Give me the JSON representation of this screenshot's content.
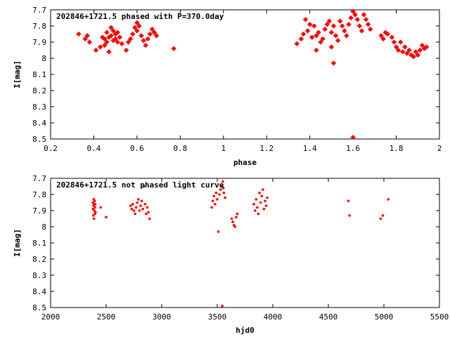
{
  "chart_data": [
    {
      "type": "scatter",
      "title": "202846+1721.5 phased with P=370.0day",
      "xlabel": "phase",
      "ylabel": "I[mag]",
      "xlim": [
        0.2,
        2.0
      ],
      "ylim": [
        7.7,
        8.5
      ],
      "y_inverted": true,
      "xticks": [
        "0.2",
        "0.4",
        "0.6",
        "0.8",
        "1",
        "1.2",
        "1.4",
        "1.6",
        "1.8",
        "2"
      ],
      "yticks": [
        "7.7",
        "7.8",
        "7.9",
        "8",
        "8.1",
        "8.2",
        "8.3",
        "8.4",
        "8.5"
      ],
      "point_color": "#ff0000",
      "points": [
        [
          0.33,
          7.85
        ],
        [
          0.36,
          7.88
        ],
        [
          0.37,
          7.86
        ],
        [
          0.38,
          7.9
        ],
        [
          0.41,
          7.95
        ],
        [
          0.43,
          7.93
        ],
        [
          0.44,
          7.87
        ],
        [
          0.45,
          7.88
        ],
        [
          0.45,
          7.92
        ],
        [
          0.46,
          7.84
        ],
        [
          0.46,
          7.9
        ],
        [
          0.47,
          7.87
        ],
        [
          0.47,
          7.96
        ],
        [
          0.48,
          7.81
        ],
        [
          0.48,
          7.86
        ],
        [
          0.49,
          7.89
        ],
        [
          0.49,
          7.83
        ],
        [
          0.5,
          7.85
        ],
        [
          0.5,
          7.88
        ],
        [
          0.51,
          7.84
        ],
        [
          0.51,
          7.9
        ],
        [
          0.52,
          7.87
        ],
        [
          0.53,
          7.91
        ],
        [
          0.55,
          7.95
        ],
        [
          0.56,
          7.9
        ],
        [
          0.57,
          7.88
        ],
        [
          0.58,
          7.85
        ],
        [
          0.59,
          7.81
        ],
        [
          0.6,
          7.78
        ],
        [
          0.6,
          7.83
        ],
        [
          0.61,
          7.8
        ],
        [
          0.62,
          7.86
        ],
        [
          0.63,
          7.89
        ],
        [
          0.64,
          7.92
        ],
        [
          0.65,
          7.88
        ],
        [
          0.66,
          7.85
        ],
        [
          0.67,
          7.82
        ],
        [
          0.68,
          7.84
        ],
        [
          0.69,
          7.86
        ],
        [
          0.77,
          7.94
        ],
        [
          1.34,
          7.91
        ],
        [
          1.36,
          7.88
        ],
        [
          1.37,
          7.85
        ],
        [
          1.38,
          7.76
        ],
        [
          1.39,
          7.83
        ],
        [
          1.4,
          7.79
        ],
        [
          1.41,
          7.87
        ],
        [
          1.42,
          7.8
        ],
        [
          1.43,
          7.86
        ],
        [
          1.43,
          7.95
        ],
        [
          1.44,
          7.84
        ],
        [
          1.45,
          7.9
        ],
        [
          1.46,
          7.88
        ],
        [
          1.47,
          7.82
        ],
        [
          1.48,
          7.79
        ],
        [
          1.49,
          7.77
        ],
        [
          1.5,
          7.84
        ],
        [
          1.5,
          7.93
        ],
        [
          1.51,
          7.8
        ],
        [
          1.51,
          8.03
        ],
        [
          1.52,
          7.86
        ],
        [
          1.53,
          7.89
        ],
        [
          1.54,
          7.77
        ],
        [
          1.55,
          7.8
        ],
        [
          1.56,
          7.83
        ],
        [
          1.57,
          7.86
        ],
        [
          1.58,
          7.79
        ],
        [
          1.59,
          7.75
        ],
        [
          1.6,
          7.71
        ],
        [
          1.6,
          8.49
        ],
        [
          1.61,
          7.73
        ],
        [
          1.62,
          7.76
        ],
        [
          1.63,
          7.8
        ],
        [
          1.64,
          7.83
        ],
        [
          1.65,
          7.73
        ],
        [
          1.66,
          7.76
        ],
        [
          1.67,
          7.79
        ],
        [
          1.68,
          7.82
        ],
        [
          1.73,
          7.86
        ],
        [
          1.74,
          7.88
        ],
        [
          1.75,
          7.84
        ],
        [
          1.76,
          7.85
        ],
        [
          1.78,
          7.87
        ],
        [
          1.79,
          7.9
        ],
        [
          1.8,
          7.93
        ],
        [
          1.81,
          7.95
        ],
        [
          1.82,
          7.9
        ],
        [
          1.83,
          7.96
        ],
        [
          1.84,
          7.93
        ],
        [
          1.85,
          7.97
        ],
        [
          1.86,
          7.95
        ],
        [
          1.87,
          7.98
        ],
        [
          1.88,
          7.99
        ],
        [
          1.89,
          7.96
        ],
        [
          1.9,
          7.98
        ],
        [
          1.91,
          7.95
        ],
        [
          1.92,
          7.92
        ],
        [
          1.93,
          7.94
        ],
        [
          1.94,
          7.93
        ]
      ]
    },
    {
      "type": "scatter",
      "title": "202846+1721.5 not phased light curve",
      "xlabel": "hjd0",
      "ylabel": "I[mag]",
      "xlim": [
        2000,
        5500
      ],
      "ylim": [
        7.7,
        8.5
      ],
      "y_inverted": true,
      "xticks": [
        "2000",
        "2500",
        "3000",
        "3500",
        "4000",
        "4500",
        "5000",
        "5500"
      ],
      "yticks": [
        "7.7",
        "7.8",
        "7.9",
        "8",
        "8.1",
        "8.2",
        "8.3",
        "8.4",
        "8.5"
      ],
      "point_color": "#ff0000",
      "points": [
        [
          2380,
          7.85
        ],
        [
          2382,
          7.89
        ],
        [
          2384,
          7.93
        ],
        [
          2386,
          7.87
        ],
        [
          2388,
          7.83
        ],
        [
          2390,
          7.95
        ],
        [
          2392,
          7.86
        ],
        [
          2394,
          7.9
        ],
        [
          2396,
          7.84
        ],
        [
          2398,
          7.92
        ],
        [
          2400,
          7.88
        ],
        [
          2402,
          7.86
        ],
        [
          2404,
          7.91
        ],
        [
          2450,
          7.88
        ],
        [
          2500,
          7.94
        ],
        [
          2720,
          7.87
        ],
        [
          2730,
          7.89
        ],
        [
          2740,
          7.86
        ],
        [
          2750,
          7.9
        ],
        [
          2760,
          7.92
        ],
        [
          2770,
          7.88
        ],
        [
          2780,
          7.85
        ],
        [
          2790,
          7.83
        ],
        [
          2800,
          7.9
        ],
        [
          2810,
          7.87
        ],
        [
          2820,
          7.84
        ],
        [
          2830,
          7.89
        ],
        [
          2840,
          7.75
        ],
        [
          2850,
          7.86
        ],
        [
          2860,
          7.92
        ],
        [
          2870,
          7.88
        ],
        [
          2880,
          7.91
        ],
        [
          2890,
          7.95
        ],
        [
          3450,
          7.88
        ],
        [
          3460,
          7.84
        ],
        [
          3470,
          7.81
        ],
        [
          3480,
          7.86
        ],
        [
          3490,
          7.79
        ],
        [
          3500,
          7.83
        ],
        [
          3510,
          8.03
        ],
        [
          3520,
          7.8
        ],
        [
          3530,
          7.77
        ],
        [
          3540,
          7.75
        ],
        [
          3545,
          8.49
        ],
        [
          3550,
          7.72
        ],
        [
          3555,
          7.76
        ],
        [
          3560,
          7.79
        ],
        [
          3570,
          7.82
        ],
        [
          3630,
          7.95
        ],
        [
          3640,
          7.97
        ],
        [
          3650,
          7.99
        ],
        [
          3660,
          8.0
        ],
        [
          3670,
          7.94
        ],
        [
          3680,
          7.92
        ],
        [
          3830,
          7.86
        ],
        [
          3840,
          7.9
        ],
        [
          3850,
          7.83
        ],
        [
          3860,
          7.88
        ],
        [
          3870,
          7.92
        ],
        [
          3880,
          7.79
        ],
        [
          3890,
          7.85
        ],
        [
          3900,
          7.81
        ],
        [
          3910,
          7.77
        ],
        [
          3920,
          7.89
        ],
        [
          3930,
          7.84
        ],
        [
          3940,
          7.87
        ],
        [
          3950,
          7.82
        ],
        [
          4680,
          7.84
        ],
        [
          4690,
          7.93
        ],
        [
          4970,
          7.95
        ],
        [
          4990,
          7.93
        ],
        [
          5040,
          7.83
        ]
      ]
    }
  ]
}
